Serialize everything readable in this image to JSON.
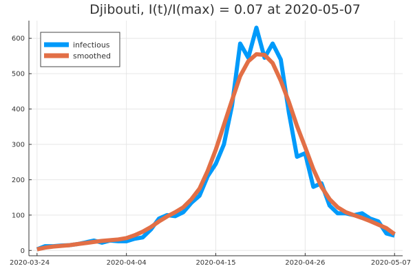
{
  "chart_data": {
    "type": "line",
    "title": "Djibouti,  I(t)/I(max) = 0.07 at 2020-05-07",
    "xlabel": "",
    "ylabel": "",
    "xlim": [
      "2020-03-23",
      "2020-05-08"
    ],
    "ylim": [
      -15,
      650
    ],
    "grid": true,
    "legend_position": "top-left",
    "x_ticks": [
      "2020-03-24",
      "2020-04-04",
      "2020-04-15",
      "2020-04-26",
      "2020-05-07"
    ],
    "y_ticks": [
      0,
      100,
      200,
      300,
      400,
      500,
      600
    ],
    "x": [
      "2020-03-24",
      "2020-03-25",
      "2020-03-26",
      "2020-03-27",
      "2020-03-28",
      "2020-03-29",
      "2020-03-30",
      "2020-03-31",
      "2020-04-01",
      "2020-04-02",
      "2020-04-03",
      "2020-04-04",
      "2020-04-05",
      "2020-04-06",
      "2020-04-07",
      "2020-04-08",
      "2020-04-09",
      "2020-04-10",
      "2020-04-11",
      "2020-04-12",
      "2020-04-13",
      "2020-04-14",
      "2020-04-15",
      "2020-04-16",
      "2020-04-17",
      "2020-04-18",
      "2020-04-19",
      "2020-04-20",
      "2020-04-21",
      "2020-04-22",
      "2020-04-23",
      "2020-04-24",
      "2020-04-25",
      "2020-04-26",
      "2020-04-27",
      "2020-04-28",
      "2020-04-29",
      "2020-04-30",
      "2020-05-01",
      "2020-05-02",
      "2020-05-03",
      "2020-05-04",
      "2020-05-05",
      "2020-05-06",
      "2020-05-07"
    ],
    "series": [
      {
        "name": "infectious",
        "color": "#009AFA",
        "values": [
          3,
          12,
          12,
          14,
          15,
          18,
          23,
          28,
          22,
          28,
          26,
          26,
          33,
          37,
          59,
          90,
          100,
          97,
          108,
          135,
          155,
          210,
          245,
          300,
          410,
          585,
          545,
          630,
          545,
          585,
          540,
          390,
          265,
          275,
          180,
          190,
          127,
          105,
          105,
          100,
          105,
          90,
          82,
          48,
          42
        ]
      },
      {
        "name": "smoothed",
        "color": "#E26F46",
        "values": [
          3,
          8,
          11,
          13,
          15,
          18,
          21,
          24,
          27,
          29,
          31,
          35,
          43,
          53,
          66,
          82,
          96,
          108,
          122,
          145,
          175,
          225,
          285,
          355,
          425,
          493,
          535,
          555,
          553,
          530,
          480,
          420,
          352,
          292,
          230,
          180,
          145,
          122,
          108,
          100,
          92,
          83,
          73,
          63,
          46
        ]
      }
    ]
  }
}
